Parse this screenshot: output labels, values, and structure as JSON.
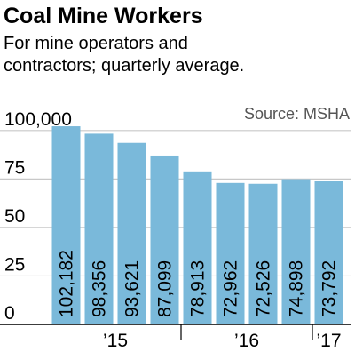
{
  "chart_data": {
    "type": "bar",
    "title": "Coal Mine Workers",
    "subtitle": [
      "For mine operators and",
      "contractors; quarterly average."
    ],
    "source": "Source: MSHA",
    "categories": [
      null,
      null,
      null,
      null,
      null,
      null,
      null,
      null,
      null
    ],
    "x_groups": [
      {
        "label": "’15",
        "count": 4
      },
      {
        "label": "’16",
        "count": 4
      },
      {
        "label": "’17",
        "count": 1
      }
    ],
    "values": [
      102182,
      98356,
      93621,
      87099,
      78913,
      72962,
      72526,
      74898,
      73792
    ],
    "value_labels": [
      "102,182",
      "98,356",
      "93,621",
      "87,099",
      "78,913",
      "72,962",
      "72,526",
      "74,898",
      "73,792"
    ],
    "color": "#7ab9da",
    "ylim": [
      0,
      110000
    ],
    "yticks": [
      0,
      {
        "value": 25000,
        "label": "25"
      },
      {
        "value": 50000,
        "label": "50"
      },
      {
        "value": 75000,
        "label": "75"
      },
      {
        "value": 100000,
        "label": "100,000"
      }
    ],
    "grid": true
  }
}
